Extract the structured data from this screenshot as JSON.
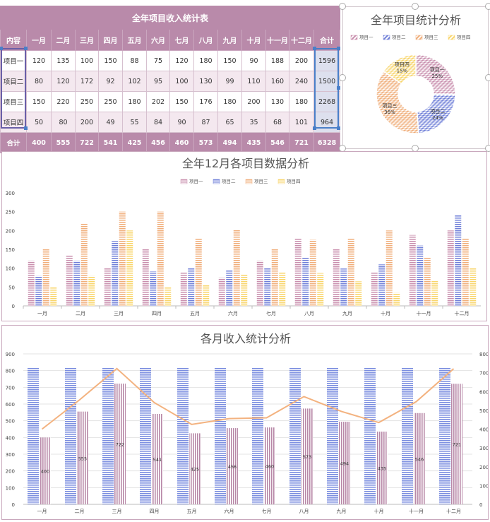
{
  "table": {
    "title": "全年项目收入统计表",
    "header": [
      "内容",
      "一月",
      "二月",
      "三月",
      "四月",
      "五月",
      "六月",
      "七月",
      "八月",
      "九月",
      "十月",
      "十一月",
      "十二月",
      "合计"
    ],
    "rows": [
      {
        "name": "项目一",
        "values": [
          120,
          135,
          100,
          150,
          88,
          75,
          120,
          180,
          150,
          90,
          188,
          200
        ],
        "total": 1596
      },
      {
        "name": "项目二",
        "values": [
          80,
          120,
          172,
          92,
          102,
          95,
          100,
          130,
          99,
          110,
          160,
          240
        ],
        "total": 1500
      },
      {
        "name": "项目三",
        "values": [
          150,
          220,
          250,
          250,
          180,
          202,
          150,
          176,
          180,
          200,
          130,
          180
        ],
        "total": 2268
      },
      {
        "name": "项目四",
        "values": [
          50,
          80,
          200,
          49,
          55,
          84,
          90,
          87,
          65,
          35,
          68,
          101
        ],
        "total": 964
      }
    ],
    "total_row": {
      "name": "合计",
      "values": [
        400,
        555,
        722,
        541,
        425,
        456,
        460,
        573,
        494,
        435,
        546,
        721
      ],
      "total": 6328
    }
  },
  "colors": {
    "project1": "#c98fae",
    "project2": "#6f7fd8",
    "project3": "#f0ae7a",
    "project4": "#f8d56a",
    "bar_blue": "#7b8ee0",
    "bar_mauve": "#b888a8",
    "line_orange": "#f3b27f",
    "header": "#b98aaa"
  },
  "chart_data": [
    {
      "type": "pie",
      "title": "全年项目统计分析",
      "legend": [
        "项目一",
        "项目二",
        "项目三",
        "项目四"
      ],
      "legend_position": "top",
      "labels": [
        "项目一",
        "项目二",
        "项目三",
        "项目四"
      ],
      "values": [
        1596,
        1500,
        2268,
        964
      ],
      "percent_labels": [
        "25%",
        "24%",
        "36%",
        "15%"
      ],
      "donut": true
    },
    {
      "type": "bar",
      "title": "全年12月各项目数据分析",
      "legend": [
        "项目一",
        "项目二",
        "项目三",
        "项目四"
      ],
      "legend_position": "top",
      "categories": [
        "一月",
        "二月",
        "三月",
        "四月",
        "五月",
        "六月",
        "七月",
        "八月",
        "九月",
        "十月",
        "十一月",
        "十二月"
      ],
      "series": [
        {
          "name": "项目一",
          "values": [
            120,
            135,
            100,
            150,
            88,
            75,
            120,
            180,
            150,
            90,
            188,
            200
          ]
        },
        {
          "name": "项目二",
          "values": [
            80,
            120,
            172,
            92,
            102,
            95,
            100,
            130,
            99,
            110,
            160,
            240
          ]
        },
        {
          "name": "项目三",
          "values": [
            150,
            220,
            250,
            250,
            180,
            202,
            150,
            176,
            180,
            200,
            130,
            180
          ]
        },
        {
          "name": "项目四",
          "values": [
            50,
            80,
            200,
            49,
            55,
            84,
            90,
            87,
            65,
            35,
            68,
            101
          ]
        }
      ],
      "ylim": [
        0,
        300
      ],
      "yticks": [
        0,
        50,
        100,
        150,
        200,
        250,
        300
      ],
      "grid": false
    },
    {
      "type": "bar",
      "title": "各月收入统计分析",
      "categories": [
        "一月",
        "二月",
        "三月",
        "四月",
        "五月",
        "六月",
        "七月",
        "八月",
        "九月",
        "十月",
        "十一月",
        "十二月"
      ],
      "bar_max_values": [
        820,
        820,
        820,
        820,
        820,
        820,
        820,
        820,
        820,
        820,
        820,
        820
      ],
      "totals": [
        400,
        555,
        722,
        541,
        425,
        456,
        460,
        573,
        494,
        435,
        546,
        721
      ],
      "total_labels": [
        "400",
        "555",
        "722",
        "541",
        "425",
        "456",
        "460",
        "573",
        "494",
        "435",
        "546",
        "721"
      ],
      "line_values": [
        400,
        555,
        722,
        541,
        425,
        456,
        460,
        573,
        494,
        435,
        546,
        721
      ],
      "ylim_left": [
        0,
        900
      ],
      "yticks_left": [
        0,
        100,
        200,
        300,
        400,
        500,
        600,
        700,
        800,
        900
      ],
      "ylim_right": [
        0,
        800
      ],
      "yticks_right": [
        0,
        100,
        200,
        300,
        400,
        500,
        600,
        700,
        800
      ],
      "grid": true
    }
  ]
}
